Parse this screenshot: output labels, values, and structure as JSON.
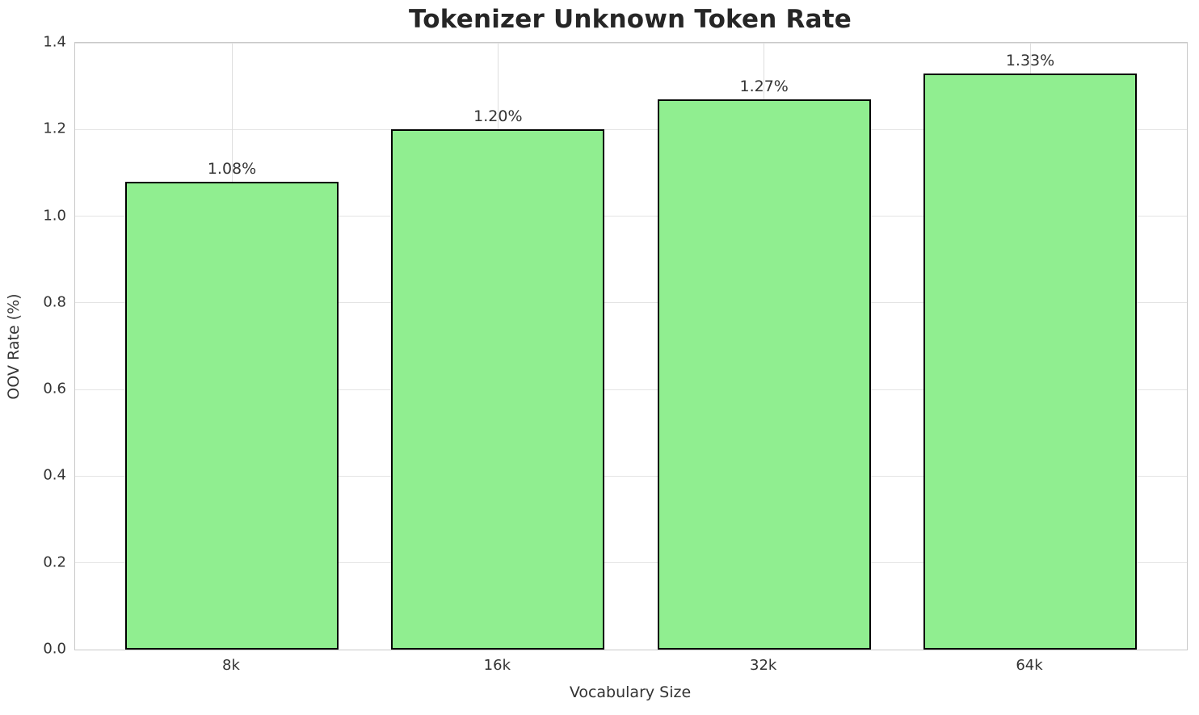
{
  "chart_data": {
    "type": "bar",
    "title": "Tokenizer Unknown Token Rate",
    "xlabel": "Vocabulary Size",
    "ylabel": "OOV Rate (%)",
    "categories": [
      "8k",
      "16k",
      "32k",
      "64k"
    ],
    "values": [
      1.08,
      1.2,
      1.27,
      1.33
    ],
    "bar_labels": [
      "1.08%",
      "1.20%",
      "1.27%",
      "1.33%"
    ],
    "ylim": [
      0.0,
      1.4
    ],
    "yticks": [
      0.0,
      0.2,
      0.4,
      0.6,
      0.8,
      1.0,
      1.2,
      1.4
    ],
    "ytick_labels": [
      "0.0",
      "0.2",
      "0.4",
      "0.6",
      "0.8",
      "1.0",
      "1.2",
      "1.4"
    ],
    "grid": true,
    "legend_position": "none",
    "colors": {
      "bar_fill": "#90EE90",
      "bar_edge": "#000000",
      "grid": "#e4e4e4",
      "spine": "#c9c9c9",
      "text": "#333333",
      "title": "#262626",
      "background": "#ffffff"
    }
  }
}
